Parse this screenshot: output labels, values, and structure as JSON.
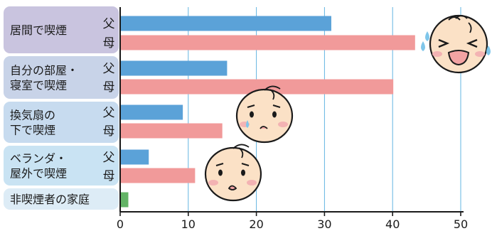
{
  "chart_data": {
    "type": "bar",
    "orientation": "horizontal",
    "xlim": [
      0,
      50
    ],
    "x_ticks": [
      "0",
      "10",
      "20",
      "30",
      "40",
      "50"
    ],
    "grid": true,
    "colors": {
      "father": "#5ba2d8",
      "mother": "#f19a9a",
      "non_smoker": "#63b466"
    },
    "groups": [
      {
        "label": [
          "居間で喫煙"
        ],
        "bg": "#c9c4df",
        "bars": [
          {
            "sub": "父",
            "value": 31,
            "role": "father"
          },
          {
            "sub": "母",
            "value": 43.3,
            "role": "mother"
          }
        ]
      },
      {
        "label": [
          "自分の部屋・",
          "寝室で喫煙"
        ],
        "bg": "#c8d3e8",
        "bars": [
          {
            "sub": "父",
            "value": 15.7,
            "role": "father"
          },
          {
            "sub": "母",
            "value": 40.1,
            "role": "mother"
          }
        ]
      },
      {
        "label": [
          "換気扇の",
          "下で喫煙"
        ],
        "bg": "#c7dbef",
        "bars": [
          {
            "sub": "父",
            "value": 9.2,
            "role": "father"
          },
          {
            "sub": "母",
            "value": 15,
            "role": "mother"
          }
        ]
      },
      {
        "label": [
          "ベランダ・",
          "屋外で喫煙"
        ],
        "bg": "#c9e3f3",
        "bars": [
          {
            "sub": "父",
            "value": 4.2,
            "role": "father"
          },
          {
            "sub": "母",
            "value": 11,
            "role": "mother"
          }
        ]
      },
      {
        "label": [
          "非喫煙者の家庭"
        ],
        "bg": "#ddecf6",
        "bars": [
          {
            "sub": "",
            "value": 1.2,
            "role": "non_smoker"
          }
        ]
      }
    ]
  },
  "illustrations": [
    "crying-baby-face-icon",
    "sad-baby-face-icon",
    "sad-baby-face-icon"
  ]
}
